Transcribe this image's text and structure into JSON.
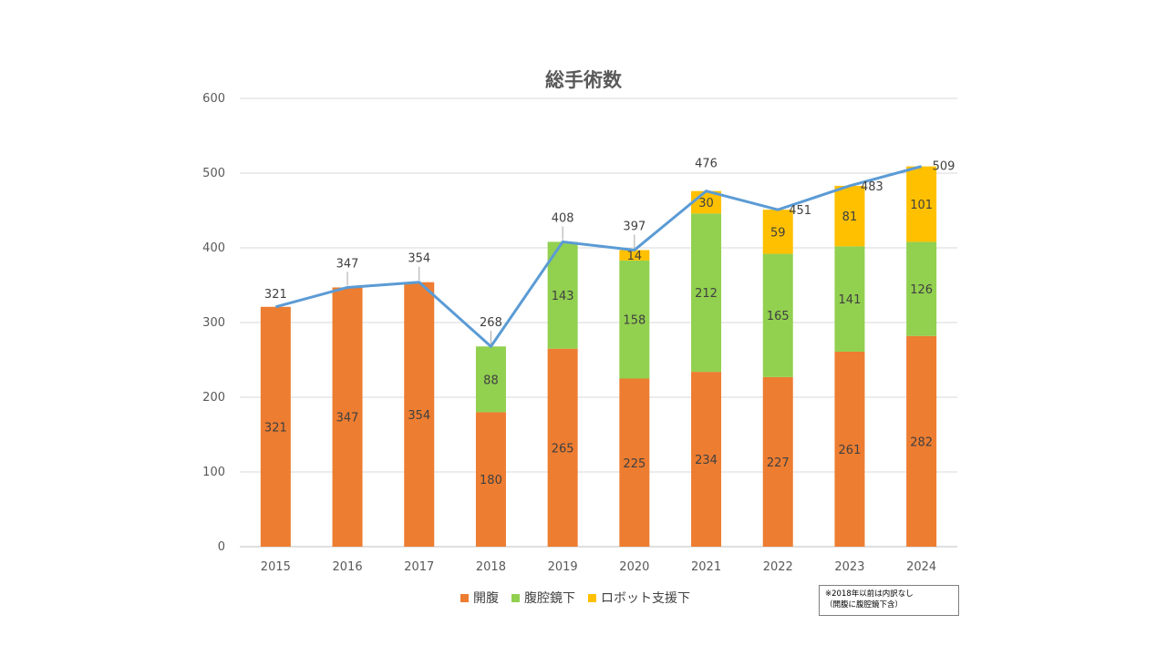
{
  "chart_data": {
    "type": "bar",
    "stacked": true,
    "title": "総手術数",
    "categories": [
      "2015",
      "2016",
      "2017",
      "2018",
      "2019",
      "2020",
      "2021",
      "2022",
      "2023",
      "2024"
    ],
    "series": [
      {
        "name": "開腹",
        "color": "#ED7D31",
        "values": [
          321,
          347,
          354,
          180,
          265,
          225,
          234,
          227,
          261,
          282
        ]
      },
      {
        "name": "腹腔鏡下",
        "color": "#92D050",
        "values": [
          null,
          null,
          null,
          88,
          143,
          158,
          212,
          165,
          141,
          126
        ]
      },
      {
        "name": "ロボット支援下",
        "color": "#FFC000",
        "values": [
          null,
          null,
          null,
          null,
          null,
          14,
          30,
          59,
          81,
          101
        ]
      }
    ],
    "totals": {
      "color": "#5B9BD5",
      "values": [
        321,
        347,
        354,
        268,
        408,
        397,
        476,
        451,
        483,
        509
      ]
    },
    "ylim": [
      0,
      600
    ],
    "yticks": [
      0,
      100,
      200,
      300,
      400,
      500,
      600
    ],
    "grid": true,
    "legend_position": "bottom"
  },
  "note": {
    "lines": [
      "※2018年以前は内訳なし",
      "（開腹に腹腔鏡下含）"
    ]
  }
}
